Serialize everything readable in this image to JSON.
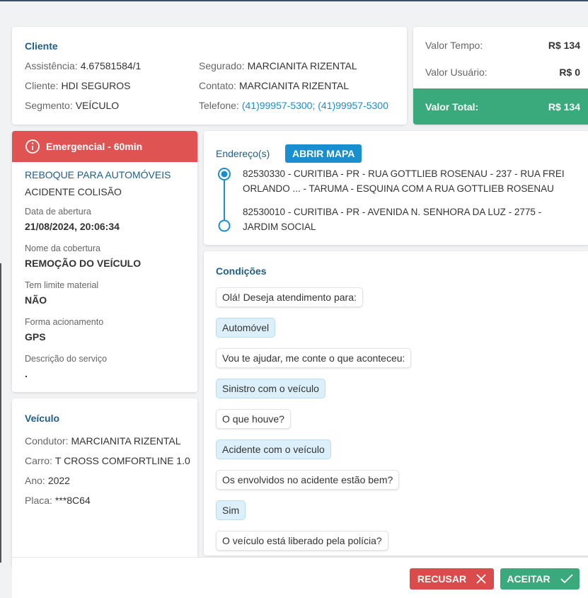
{
  "cliente": {
    "title": "Cliente",
    "fields": [
      {
        "label": "Assistência:",
        "value": "4.67581584/1"
      },
      {
        "label": "Cliente:",
        "value": "HDI SEGUROS"
      },
      {
        "label": "Segmento:",
        "value": "VEÍCULO"
      },
      {
        "label": "Segurado:",
        "value": "MARCIANITA RIZENTAL"
      },
      {
        "label": "Contato:",
        "value": "MARCIANITA RIZENTAL"
      },
      {
        "label": "Telefone:",
        "value": "(41)99957-5300; (41)99957-5300"
      }
    ]
  },
  "valores": {
    "rows": [
      {
        "label": "Valor Tempo:",
        "value": "R$ 134"
      },
      {
        "label": "Valor Usuário:",
        "value": "R$ 0"
      }
    ],
    "total": {
      "label": "Valor Total:",
      "value": "R$ 134"
    }
  },
  "servico": {
    "badge": "Emergencial - 60min",
    "title": "REBOQUE PARA AUTOMÓVEIS",
    "subtitle": "ACIDENTE COLISÃO",
    "fields": [
      {
        "label": "Data de abertura",
        "value": "21/08/2024, 20:06:34"
      },
      {
        "label": "Nome da cobertura",
        "value": "REMOÇÃO DO VEÍCULO"
      },
      {
        "label": "Tem limite material",
        "value": "NÃO"
      },
      {
        "label": "Forma acionamento",
        "value": "GPS"
      },
      {
        "label": "Descrição do serviço",
        "value": "."
      }
    ]
  },
  "enderecos": {
    "title": "Endereço(s)",
    "button": "ABRIR MAPA",
    "items": [
      "82530330 - CURITIBA - PR - RUA GOTTLIEB ROSENAU - 237 - RUA FREI ORLANDO ... - TARUMA - ESQUINA COM A RUA GOTTLIEB ROSENAU",
      "82530010 - CURITIBA - PR - AVENIDA N. SENHORA DA LUZ - 2775 - JARDIM SOCIAL"
    ]
  },
  "condicoes": {
    "title": "Condições",
    "messages": [
      "Olá! Deseja atendimento para:",
      "Automóvel",
      "Vou te ajudar, me conte o que aconteceu:",
      "Sinistro com o veículo",
      "O que houve?",
      "Acidente com o veículo",
      "Os envolvidos no acidente estão bem?",
      "Sim",
      "O veículo está liberado pela polícia?"
    ]
  },
  "veiculo": {
    "title": "Veículo",
    "fields": [
      {
        "label": "Condutor:",
        "value": "MARCIANITA RIZENTAL"
      },
      {
        "label": "Carro:",
        "value": "T CROSS COMFORTLINE 1.0"
      },
      {
        "label": "Ano:",
        "value": "2022"
      },
      {
        "label": "Placa:",
        "value": "***8C64"
      }
    ]
  },
  "actions": {
    "reject": "RECUSAR",
    "accept": "ACEITAR"
  }
}
